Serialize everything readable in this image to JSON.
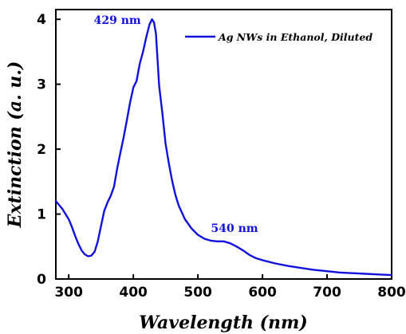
{
  "chart_data": {
    "type": "line",
    "title": "",
    "xlabel": "Wavelength (nm)",
    "ylabel": "Extinction (a. u.)",
    "xlim": [
      280,
      800
    ],
    "ylim": [
      0,
      4.15
    ],
    "xticks": [
      300,
      400,
      500,
      600,
      700,
      800
    ],
    "yticks": [
      0,
      1,
      2,
      3,
      4
    ],
    "grid": false,
    "legend_position": "top-right",
    "series": [
      {
        "name": "Ag NWs in Ethanol, Diluted",
        "color": "#1111dd",
        "x": [
          280,
          290,
          300,
          305,
          310,
          315,
          320,
          325,
          330,
          335,
          340,
          345,
          350,
          355,
          360,
          365,
          370,
          375,
          380,
          385,
          390,
          395,
          400,
          405,
          410,
          415,
          420,
          425,
          429,
          432,
          435,
          440,
          445,
          450,
          455,
          460,
          465,
          470,
          480,
          490,
          500,
          510,
          520,
          530,
          540,
          550,
          560,
          570,
          580,
          590,
          600,
          620,
          640,
          660,
          680,
          700,
          720,
          740,
          760,
          780,
          800
        ],
        "y": [
          1.2,
          1.08,
          0.92,
          0.8,
          0.66,
          0.54,
          0.44,
          0.38,
          0.35,
          0.36,
          0.42,
          0.58,
          0.82,
          1.05,
          1.18,
          1.28,
          1.42,
          1.7,
          1.95,
          2.18,
          2.45,
          2.72,
          2.95,
          3.05,
          3.32,
          3.5,
          3.72,
          3.92,
          4.0,
          3.95,
          3.78,
          2.98,
          2.55,
          2.08,
          1.78,
          1.52,
          1.3,
          1.14,
          0.92,
          0.78,
          0.68,
          0.62,
          0.59,
          0.58,
          0.58,
          0.55,
          0.5,
          0.44,
          0.37,
          0.32,
          0.29,
          0.24,
          0.2,
          0.17,
          0.14,
          0.12,
          0.1,
          0.09,
          0.08,
          0.07,
          0.06
        ]
      }
    ],
    "annotations": [
      {
        "text": "429 nm",
        "x": 429,
        "y": 4.0,
        "color": "#1111dd"
      },
      {
        "text": "540 nm",
        "x": 540,
        "y": 0.58,
        "color": "#1111dd"
      }
    ]
  }
}
